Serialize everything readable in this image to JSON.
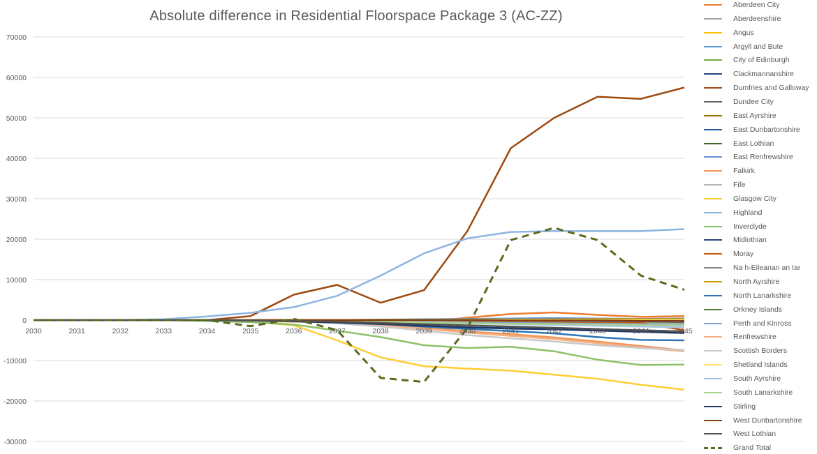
{
  "chart_data": {
    "type": "line",
    "title": "Absolute difference in Residential Floorspace Package 3 (AC-ZZ)",
    "xlabel": "",
    "ylabel": "",
    "ylim": [
      -30000,
      70000
    ],
    "yticks": [
      70000,
      60000,
      50000,
      40000,
      30000,
      20000,
      10000,
      0,
      -10000,
      -20000,
      -30000
    ],
    "categories": [
      "2030",
      "2031",
      "2032",
      "2033",
      "2034",
      "2035",
      "2036",
      "2037",
      "2038",
      "2039",
      "2040",
      "2041",
      "2042",
      "2043",
      "2044",
      "2045"
    ],
    "grid": true,
    "legend_position": "right",
    "series": [
      {
        "name": "Aberdeen City",
        "color": "#ED7D31",
        "dashed": false,
        "values": [
          0,
          0,
          0,
          0,
          0,
          -200,
          -400,
          -600,
          -700,
          -500,
          600,
          1500,
          1900,
          1300,
          800,
          1000
        ]
      },
      {
        "name": "Aberdeenshire",
        "color": "#A5A5A5",
        "dashed": false,
        "values": [
          0,
          0,
          0,
          0,
          0,
          -100,
          -200,
          -400,
          -600,
          -800,
          -500,
          -200,
          0,
          -200,
          -400,
          -300
        ]
      },
      {
        "name": "Angus",
        "color": "#FFC000",
        "dashed": false,
        "values": [
          0,
          0,
          0,
          0,
          0,
          0,
          0,
          0,
          0,
          0,
          200,
          300,
          400,
          300,
          200,
          300
        ]
      },
      {
        "name": "Argyll and Bute",
        "color": "#5B9BD5",
        "dashed": false,
        "values": [
          0,
          0,
          0,
          0,
          0,
          0,
          0,
          0,
          100,
          200,
          300,
          400,
          500,
          400,
          300,
          400
        ]
      },
      {
        "name": "City of Edinburgh",
        "color": "#70AD47",
        "dashed": false,
        "values": [
          0,
          0,
          0,
          0,
          0,
          0,
          0,
          0,
          -100,
          -200,
          -300,
          -300,
          -400,
          -400,
          -500,
          -500
        ]
      },
      {
        "name": "Clackmannanshire",
        "color": "#264478",
        "dashed": false,
        "values": [
          0,
          0,
          0,
          0,
          0,
          0,
          0,
          0,
          0,
          0,
          0,
          100,
          100,
          100,
          100,
          100
        ]
      },
      {
        "name": "Dumfries and Galloway",
        "color": "#9E480E",
        "dashed": false,
        "values": [
          0,
          0,
          0,
          0,
          0,
          1000,
          6300,
          8700,
          4300,
          7400,
          22000,
          42500,
          50000,
          55200,
          54700,
          57500
        ]
      },
      {
        "name": "Dundee City",
        "color": "#636363",
        "dashed": false,
        "values": [
          0,
          0,
          0,
          0,
          0,
          0,
          0,
          -100,
          -200,
          -300,
          -400,
          -500,
          -600,
          -700,
          -800,
          -900
        ]
      },
      {
        "name": "East Ayrshire",
        "color": "#997300",
        "dashed": false,
        "values": [
          0,
          0,
          0,
          0,
          0,
          0,
          0,
          -100,
          -200,
          -300,
          -300,
          -400,
          -400,
          -500,
          -500,
          -600
        ]
      },
      {
        "name": "East Dunbartonshire",
        "color": "#255E91",
        "dashed": false,
        "values": [
          0,
          0,
          0,
          0,
          0,
          0,
          0,
          0,
          0,
          -100,
          -100,
          -200,
          -200,
          -300,
          -300,
          -400
        ]
      },
      {
        "name": "East Lothian",
        "color": "#43682B",
        "dashed": false,
        "values": [
          0,
          0,
          0,
          0,
          0,
          0,
          0,
          0,
          0,
          0,
          0,
          0,
          -100,
          -100,
          -100,
          -200
        ]
      },
      {
        "name": "East Renfrewshire",
        "color": "#698ED0",
        "dashed": false,
        "values": [
          0,
          0,
          0,
          0,
          0,
          0,
          0,
          0,
          0,
          0,
          -100,
          -100,
          -200,
          -200,
          -200,
          -300
        ]
      },
      {
        "name": "Falkirk",
        "color": "#F1975A",
        "dashed": false,
        "values": [
          0,
          0,
          0,
          0,
          0,
          0,
          -200,
          -500,
          -1000,
          -1800,
          -2800,
          -3500,
          -4300,
          -5300,
          -6400,
          -7500
        ]
      },
      {
        "name": "Fife",
        "color": "#B7B7B7",
        "dashed": false,
        "values": [
          0,
          0,
          0,
          0,
          0,
          0,
          0,
          -100,
          -200,
          -300,
          -400,
          -500,
          -600,
          -700,
          -800,
          -900
        ]
      },
      {
        "name": "Glasgow City",
        "color": "#FFCD33",
        "dashed": false,
        "values": [
          0,
          0,
          0,
          0,
          -100,
          -400,
          -1300,
          -5000,
          -9200,
          -11400,
          -12000,
          -12500,
          -13500,
          -14500,
          -16000,
          -17200
        ]
      },
      {
        "name": "Highland",
        "color": "#8CB4E0",
        "dashed": false,
        "values": [
          0,
          0,
          0,
          200,
          900,
          1800,
          3200,
          6000,
          11000,
          16500,
          20200,
          21800,
          22000,
          22000,
          22000,
          22500
        ]
      },
      {
        "name": "Inverclyde",
        "color": "#8CC168",
        "dashed": false,
        "values": [
          0,
          0,
          0,
          0,
          -200,
          -500,
          -1100,
          -2600,
          -4200,
          -6200,
          -6900,
          -6600,
          -7700,
          -9800,
          -11100,
          -11000
        ]
      },
      {
        "name": "Midlothian",
        "color": "#264478",
        "dashed": false,
        "values": [
          0,
          0,
          0,
          0,
          0,
          -100,
          -300,
          -600,
          -1000,
          -1400,
          -1800,
          -2000,
          -2200,
          -2400,
          -2600,
          -2800
        ]
      },
      {
        "name": "Moray",
        "color": "#C55A11",
        "dashed": false,
        "values": [
          0,
          0,
          0,
          0,
          0,
          -100,
          -200,
          -300,
          -400,
          -500,
          -500,
          -600,
          -600,
          -700,
          -700,
          -2500
        ]
      },
      {
        "name": "Na h-Eileanan an Iar",
        "color": "#848484",
        "dashed": false,
        "values": [
          0,
          0,
          0,
          0,
          0,
          0,
          0,
          0,
          100,
          100,
          200,
          200,
          300,
          300,
          300,
          400
        ]
      },
      {
        "name": "North Ayrshire",
        "color": "#C9A000",
        "dashed": false,
        "values": [
          0,
          0,
          0,
          0,
          0,
          0,
          0,
          0,
          0,
          0,
          100,
          100,
          100,
          200,
          200,
          200
        ]
      },
      {
        "name": "North Lanarkshire",
        "color": "#2E75B6",
        "dashed": false,
        "values": [
          0,
          0,
          0,
          0,
          0,
          -100,
          -300,
          -600,
          -1100,
          -1600,
          -2200,
          -2700,
          -3300,
          -4200,
          -4900,
          -5000
        ]
      },
      {
        "name": "Orkney Islands",
        "color": "#548235",
        "dashed": false,
        "values": [
          0,
          0,
          0,
          0,
          0,
          0,
          0,
          0,
          0,
          0,
          0,
          0,
          0,
          0,
          0,
          0
        ]
      },
      {
        "name": "Perth and Kinross",
        "color": "#7F9FD9",
        "dashed": false,
        "values": [
          0,
          0,
          0,
          0,
          0,
          0,
          -100,
          -200,
          -300,
          -400,
          -600,
          -700,
          -800,
          -900,
          -1000,
          -1100
        ]
      },
      {
        "name": "Renfrewshire",
        "color": "#F4B183",
        "dashed": false,
        "values": [
          0,
          0,
          0,
          0,
          0,
          -100,
          -300,
          -700,
          -1300,
          -2100,
          -3100,
          -3900,
          -4700,
          -5700,
          -6800,
          -7700
        ]
      },
      {
        "name": "Scottish Borders",
        "color": "#C9C9C9",
        "dashed": false,
        "values": [
          0,
          0,
          0,
          0,
          0,
          -100,
          -300,
          -800,
          -1600,
          -2600,
          -3700,
          -4500,
          -5300,
          -6200,
          -6900,
          -7400
        ]
      },
      {
        "name": "Shetland Islands",
        "color": "#FFE066",
        "dashed": false,
        "values": [
          0,
          0,
          0,
          0,
          0,
          0,
          0,
          0,
          0,
          0,
          0,
          0,
          0,
          0,
          0,
          0
        ]
      },
      {
        "name": "South Ayrshire",
        "color": "#A9C4E8",
        "dashed": false,
        "values": [
          0,
          0,
          0,
          0,
          0,
          0,
          -100,
          -200,
          -400,
          -600,
          -800,
          -1000,
          -1200,
          -1400,
          -1600,
          -1800
        ]
      },
      {
        "name": "South Lanarkshire",
        "color": "#A9D18E",
        "dashed": false,
        "values": [
          0,
          0,
          0,
          0,
          0,
          0,
          -100,
          -200,
          -400,
          -600,
          -800,
          -900,
          -1000,
          -1100,
          -1200,
          -1300
        ]
      },
      {
        "name": "Stirling",
        "color": "#203864",
        "dashed": false,
        "values": [
          0,
          0,
          0,
          0,
          0,
          -100,
          -300,
          -600,
          -1000,
          -1400,
          -1800,
          -2100,
          -2300,
          -2600,
          -2900,
          -3200
        ]
      },
      {
        "name": "West Dunbartonshire",
        "color": "#843C0C",
        "dashed": false,
        "values": [
          0,
          0,
          0,
          0,
          0,
          0,
          0,
          0,
          0,
          0,
          0,
          -100,
          -100,
          -100,
          -200,
          -200
        ]
      },
      {
        "name": "West Lothian",
        "color": "#525252",
        "dashed": false,
        "values": [
          0,
          0,
          0,
          0,
          0,
          -100,
          -200,
          -400,
          -700,
          -1000,
          -1300,
          -1600,
          -1900,
          -2200,
          -2500,
          -2800
        ]
      },
      {
        "name": "Grand Total",
        "color": "#5A6B1E",
        "dashed": true,
        "values": [
          0,
          0,
          0,
          0,
          0,
          -1500,
          300,
          -2500,
          -14300,
          -15300,
          -2000,
          19800,
          22800,
          19800,
          11000,
          7500
        ]
      }
    ]
  }
}
